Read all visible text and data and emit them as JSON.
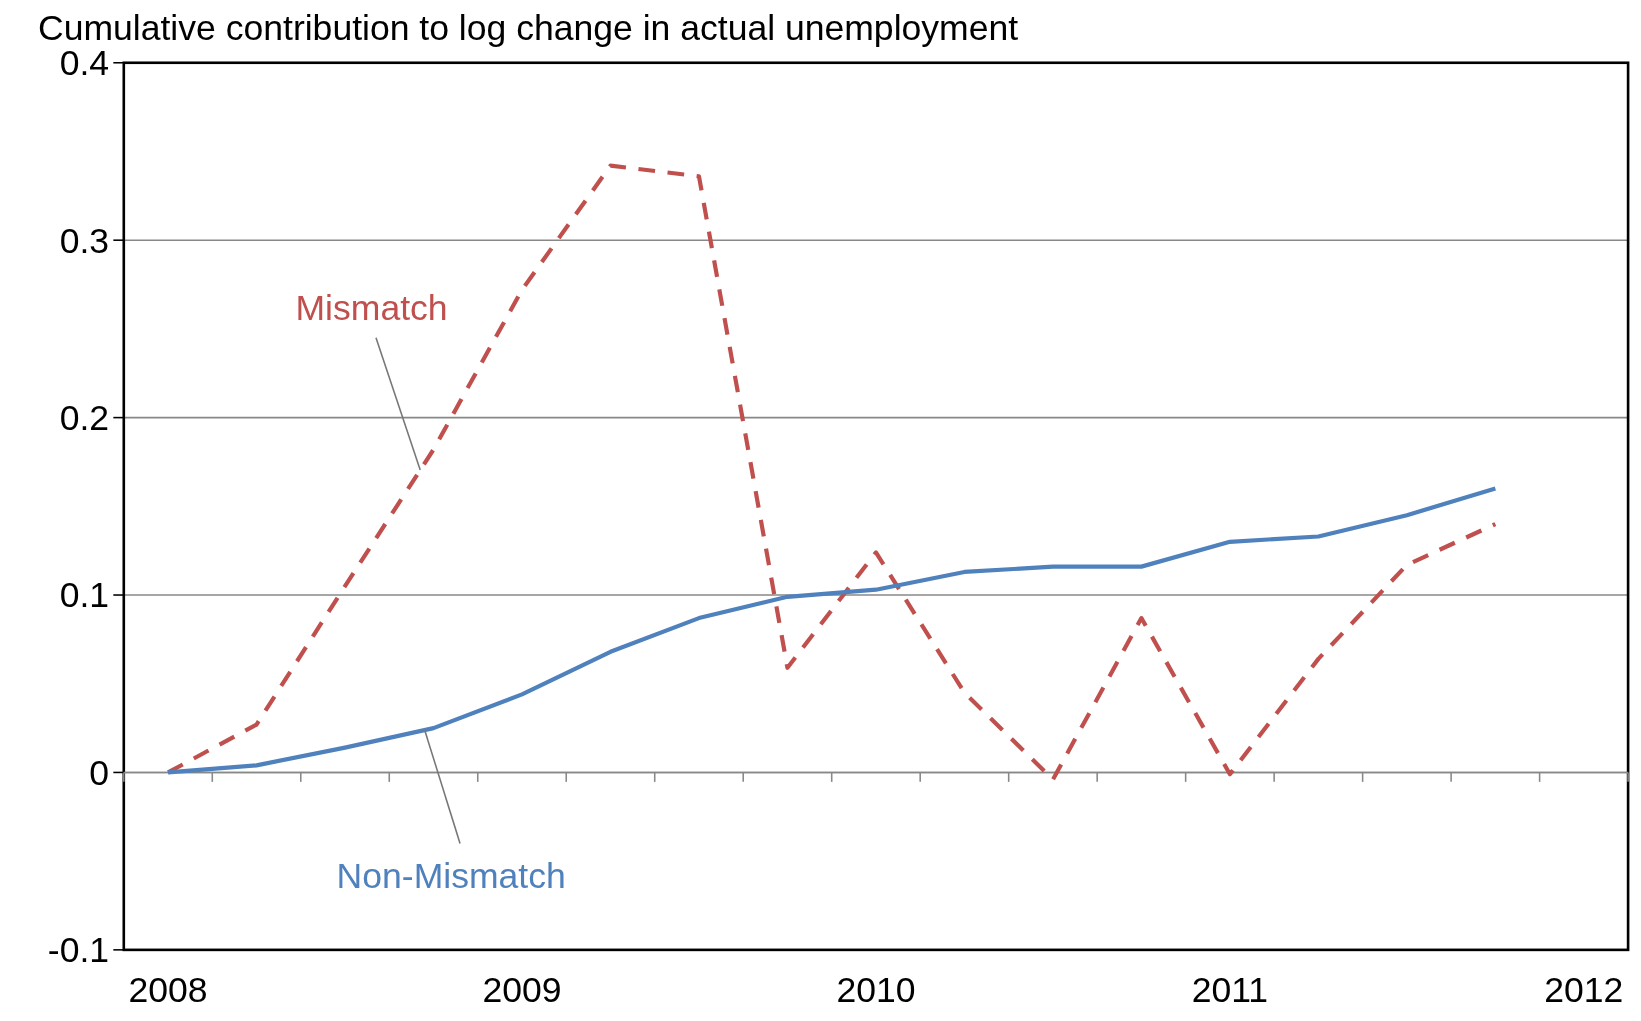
{
  "chart_data": {
    "type": "line",
    "title": "Cumulative contribution to log change in actual unemployment",
    "categories": [
      "2008",
      null,
      null,
      null,
      "2009",
      null,
      null,
      null,
      "2010",
      null,
      null,
      null,
      "2011",
      null,
      null,
      null,
      "2012"
    ],
    "series": [
      {
        "name": "Mismatch",
        "color": "#c0504d",
        "line_style": "dashed",
        "values": [
          0,
          0.027,
          0.105,
          0.182,
          0.272,
          0.342,
          0.336,
          0.059,
          0.124,
          0.045,
          -0.004,
          0.087,
          -0.001,
          0.064,
          0.117,
          0.14,
          null
        ]
      },
      {
        "name": "Non-Mismatch",
        "color": "#4f81bd",
        "line_style": "solid",
        "values": [
          0,
          0.004,
          0.014,
          0.025,
          0.044,
          0.068,
          0.087,
          0.099,
          0.103,
          0.113,
          0.116,
          0.116,
          0.13,
          0.133,
          0.145,
          0.16,
          null
        ]
      }
    ],
    "ylim": [
      -0.1,
      0.4
    ],
    "yticks": [
      -0.1,
      0,
      0.1,
      0.2,
      0.3,
      0.4
    ],
    "grid": "y",
    "marker": "none"
  }
}
